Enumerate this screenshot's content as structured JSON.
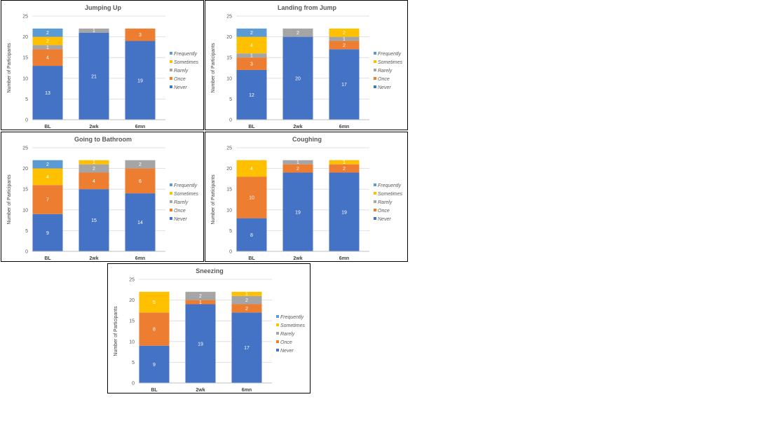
{
  "colors": {
    "Frequently": "#5B9BD5",
    "Sometimes": "#FFC000",
    "Rarely": "#A5A5A5",
    "Once": "#ED7D31",
    "Never": "#4472C4"
  },
  "legend_order": [
    "Frequently",
    "Sometimes",
    "Rarely",
    "Once",
    "Never"
  ],
  "chart_data": [
    {
      "type": "bar",
      "title": "Jumping Up",
      "ylabel": "Number of Participants",
      "categories": [
        "BL",
        "2wk",
        "6mn"
      ],
      "ylim": [
        0,
        25
      ],
      "yticks": [
        0,
        5,
        10,
        15,
        20,
        25
      ],
      "series": [
        {
          "name": "Never",
          "values": [
            13,
            21,
            19
          ]
        },
        {
          "name": "Once",
          "values": [
            4,
            0,
            3
          ]
        },
        {
          "name": "Rarely",
          "values": [
            1,
            1,
            0
          ]
        },
        {
          "name": "Sometimes",
          "values": [
            2,
            0,
            0
          ]
        },
        {
          "name": "Frequently",
          "values": [
            2,
            0,
            0
          ]
        }
      ]
    },
    {
      "type": "bar",
      "title": "Landing from Jump",
      "ylabel": "Number of Participants",
      "categories": [
        "BL",
        "2wk",
        "6mn"
      ],
      "ylim": [
        0,
        25
      ],
      "yticks": [
        0,
        5,
        10,
        15,
        20,
        25
      ],
      "series": [
        {
          "name": "Never",
          "values": [
            12,
            20,
            17
          ]
        },
        {
          "name": "Once",
          "values": [
            3,
            0,
            2
          ]
        },
        {
          "name": "Rarely",
          "values": [
            1,
            2,
            1
          ]
        },
        {
          "name": "Sometimes",
          "values": [
            4,
            0,
            2
          ]
        },
        {
          "name": "Frequently",
          "values": [
            2,
            0,
            0
          ]
        }
      ]
    },
    {
      "type": "bar",
      "title": "Going to Bathroom",
      "ylabel": "Number of Participants",
      "categories": [
        "BL",
        "2wk",
        "6mn"
      ],
      "ylim": [
        0,
        25
      ],
      "yticks": [
        0,
        5,
        10,
        15,
        20,
        25
      ],
      "series": [
        {
          "name": "Never",
          "values": [
            9,
            15,
            14
          ]
        },
        {
          "name": "Once",
          "values": [
            7,
            4,
            6
          ]
        },
        {
          "name": "Rarely",
          "values": [
            0,
            2,
            2
          ]
        },
        {
          "name": "Sometimes",
          "values": [
            4,
            1,
            0
          ]
        },
        {
          "name": "Frequently",
          "values": [
            2,
            0,
            0
          ]
        }
      ]
    },
    {
      "type": "bar",
      "title": "Coughing",
      "ylabel": "Number of Participants",
      "categories": [
        "BL",
        "2wk",
        "6mn"
      ],
      "ylim": [
        0,
        25
      ],
      "yticks": [
        0,
        5,
        10,
        15,
        20,
        25
      ],
      "series": [
        {
          "name": "Never",
          "values": [
            8,
            19,
            19
          ]
        },
        {
          "name": "Once",
          "values": [
            10,
            2,
            2
          ]
        },
        {
          "name": "Rarely",
          "values": [
            0,
            1,
            0
          ]
        },
        {
          "name": "Sometimes",
          "values": [
            4,
            0,
            1
          ]
        },
        {
          "name": "Frequently",
          "values": [
            0,
            0,
            0
          ]
        }
      ]
    },
    {
      "type": "bar",
      "title": "Sneezing",
      "ylabel": "Number of Participants",
      "categories": [
        "BL",
        "2wk",
        "6mn"
      ],
      "ylim": [
        0,
        25
      ],
      "yticks": [
        0,
        5,
        10,
        15,
        20,
        25
      ],
      "series": [
        {
          "name": "Never",
          "values": [
            9,
            19,
            17
          ]
        },
        {
          "name": "Once",
          "values": [
            8,
            1,
            2
          ]
        },
        {
          "name": "Rarely",
          "values": [
            0,
            2,
            2
          ]
        },
        {
          "name": "Sometimes",
          "values": [
            5,
            0,
            1
          ]
        },
        {
          "name": "Frequently",
          "values": [
            0,
            0,
            0
          ]
        }
      ]
    }
  ]
}
